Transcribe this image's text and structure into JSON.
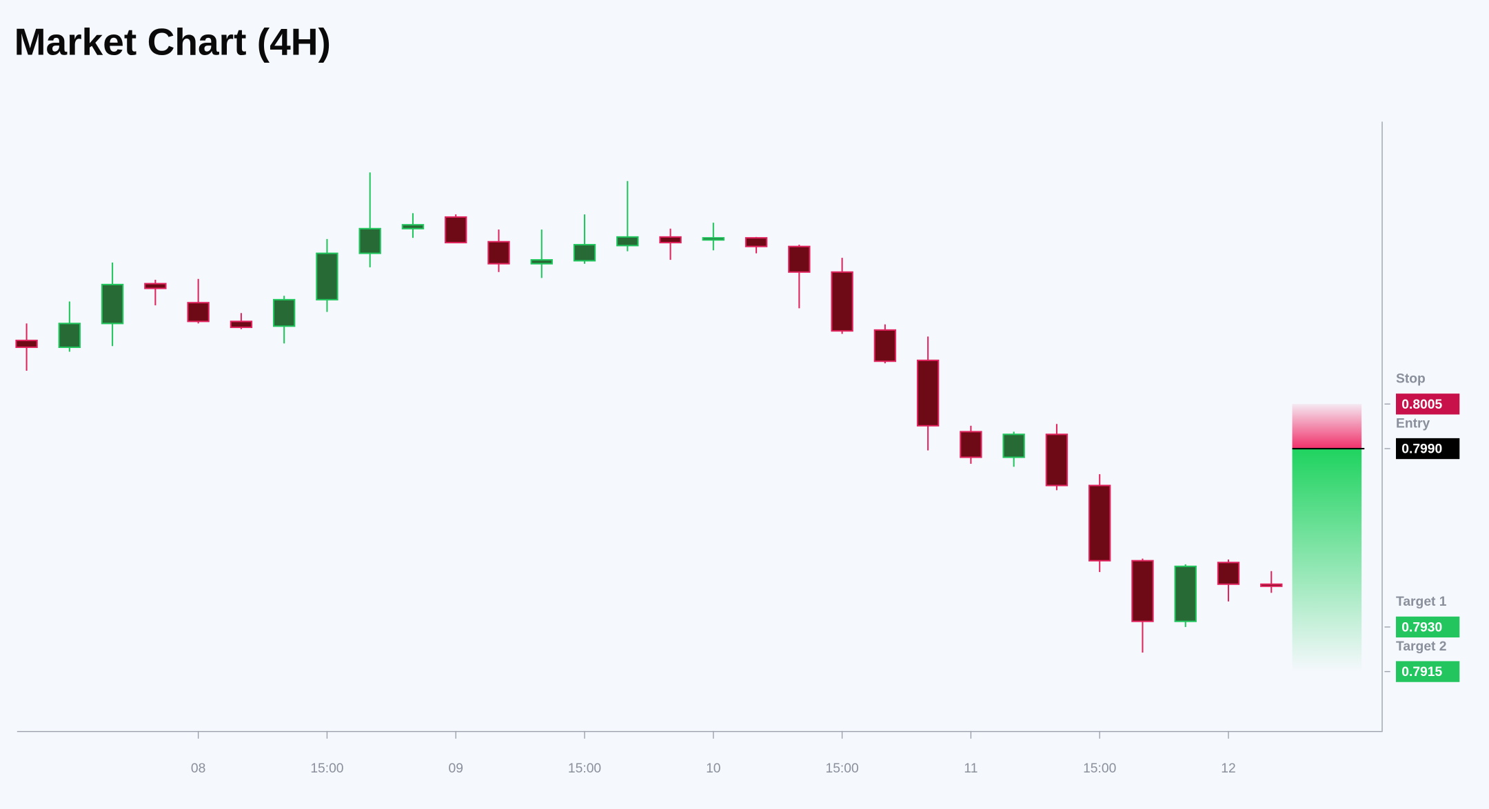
{
  "chart_data": {
    "type": "candlestick",
    "title": "Market Chart (4H)",
    "categories": [
      null,
      null,
      null,
      null,
      "08",
      null,
      null,
      "15:00",
      null,
      null,
      "09",
      null,
      null,
      "15:00",
      null,
      null,
      "10",
      null,
      null,
      "15:00",
      null,
      null,
      "11",
      null,
      null,
      "15:00",
      null,
      null,
      "12",
      null
    ],
    "open": [
      0.80264,
      0.80241,
      0.80321,
      0.80455,
      0.80391,
      0.80328,
      0.80312,
      0.80401,
      0.80557,
      0.8064,
      0.80679,
      0.80596,
      0.80522,
      0.80532,
      0.80583,
      0.80612,
      0.80602,
      0.80609,
      0.8058,
      0.80494,
      0.80299,
      0.80197,
      0.79957,
      0.79871,
      0.79948,
      0.79776,
      0.79523,
      0.79319,
      0.79517,
      0.79444
    ],
    "high": [
      0.80321,
      0.80395,
      0.80526,
      0.80468,
      0.80471,
      0.80356,
      0.80414,
      0.80605,
      0.80829,
      0.80692,
      0.80688,
      0.80637,
      0.80637,
      0.80688,
      0.808,
      0.8064,
      0.8066,
      0.80612,
      0.80586,
      0.80542,
      0.80318,
      0.80277,
      0.79977,
      0.79957,
      0.79983,
      0.79814,
      0.7953,
      0.79511,
      0.79527,
      0.79488
    ],
    "low": [
      0.80162,
      0.80226,
      0.80245,
      0.80382,
      0.80321,
      0.80302,
      0.80254,
      0.8036,
      0.8051,
      0.80609,
      0.80593,
      0.80494,
      0.80474,
      0.80522,
      0.80564,
      0.80535,
      0.80567,
      0.80557,
      0.80372,
      0.80286,
      0.80187,
      0.79894,
      0.79849,
      0.79839,
      0.7976,
      0.79485,
      0.79214,
      0.793,
      0.79386,
      0.79415
    ],
    "close": [
      0.80241,
      0.80321,
      0.80452,
      0.80439,
      0.80328,
      0.80308,
      0.80401,
      0.80557,
      0.8064,
      0.80653,
      0.80593,
      0.80522,
      0.80535,
      0.80586,
      0.80612,
      0.80593,
      0.80609,
      0.8058,
      0.80494,
      0.80296,
      0.80194,
      0.79977,
      0.79871,
      0.79948,
      0.79776,
      0.79523,
      0.79319,
      0.79504,
      0.79444,
      0.79437
    ],
    "up_color": "#22c55e",
    "up_fill": "#276a36",
    "down_color": "#e0245e",
    "down_fill": "#6e0a16",
    "ylim": [
      0.7895,
      0.81
    ],
    "levels": [
      {
        "name": "Stop",
        "value": 0.8005,
        "label": "0.8005",
        "color": "#c8114a"
      },
      {
        "name": "Entry",
        "value": 0.799,
        "label": "0.7990",
        "color": "#000000"
      },
      {
        "name": "Target 1",
        "value": 0.793,
        "label": "0.7930",
        "color": "#22c55e"
      },
      {
        "name": "Target 2",
        "value": 0.7915,
        "label": "0.7915",
        "color": "#22c55e"
      }
    ]
  }
}
